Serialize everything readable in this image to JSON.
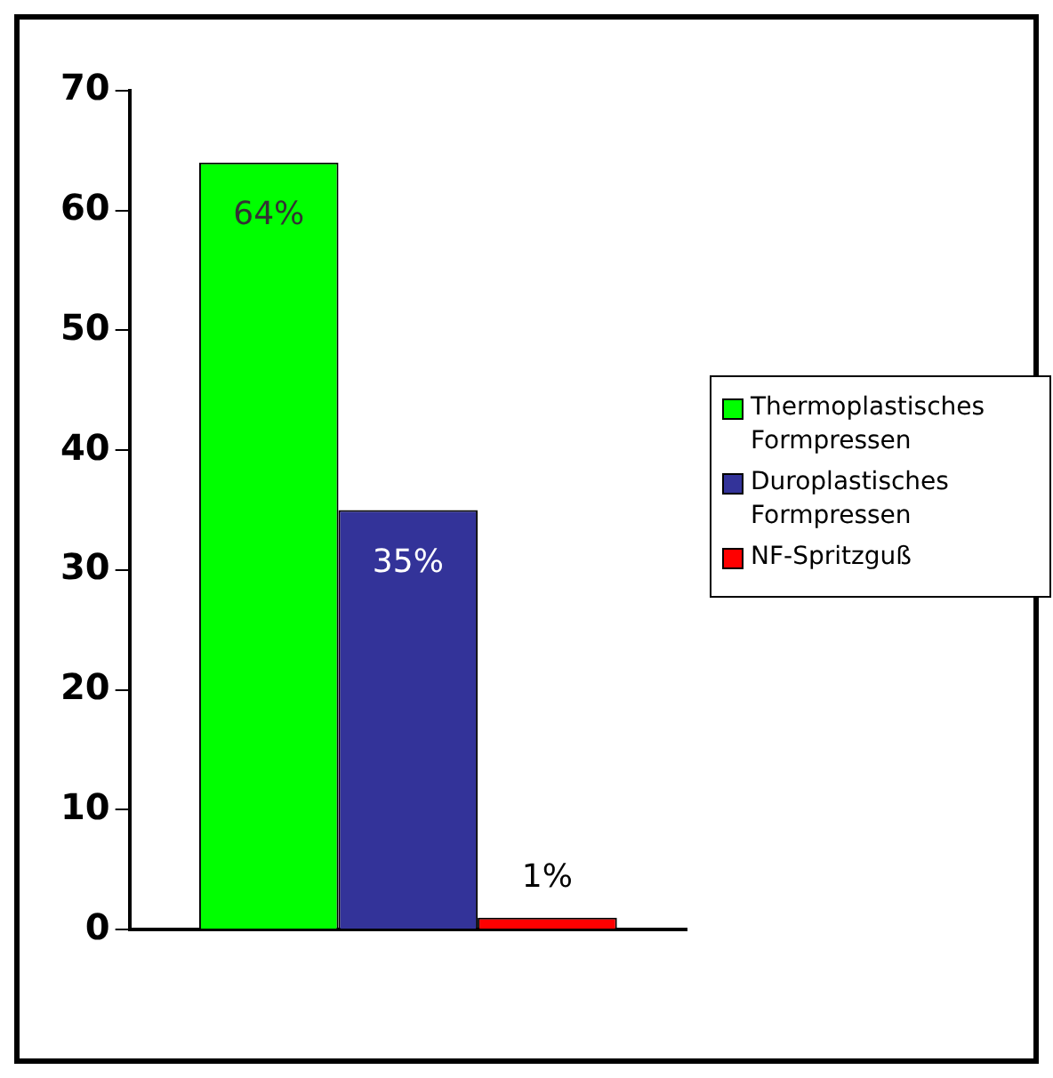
{
  "chart_data": {
    "type": "bar",
    "categories": [
      null
    ],
    "series": [
      {
        "name": "Thermoplastisches Formpressen",
        "color": "#00ff00",
        "values": [
          64
        ],
        "value_labels": [
          "64%"
        ]
      },
      {
        "name": "Duroplastisches Formpressen",
        "color": "#333399",
        "values": [
          35
        ],
        "value_labels": [
          "35%"
        ]
      },
      {
        "name": "NF-Spritzguß",
        "color": "#ff0000",
        "values": [
          1
        ],
        "value_labels": [
          "1%"
        ]
      }
    ],
    "ylim": [
      0,
      70
    ],
    "yticks": [
      0,
      10,
      20,
      30,
      40,
      50,
      60,
      70
    ],
    "grid": false,
    "legend": "right"
  }
}
